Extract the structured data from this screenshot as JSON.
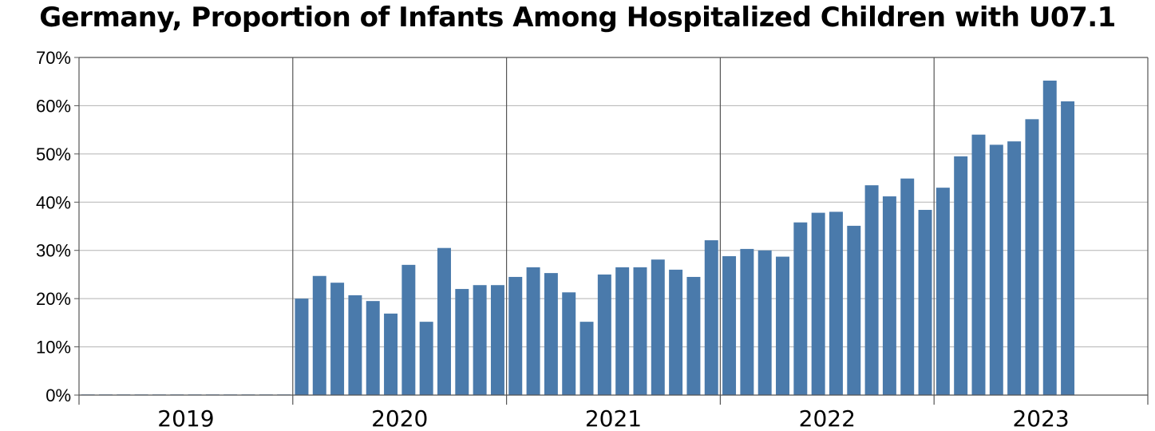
{
  "chart_data": {
    "type": "bar",
    "title": "Germany, Proportion of Infants Among Hospitalized Children with U07.1",
    "xlabel": "",
    "ylabel": "",
    "ylim": [
      0,
      70
    ],
    "yticks": [
      "0%",
      "10%",
      "20%",
      "30%",
      "40%",
      "50%",
      "60%",
      "70%"
    ],
    "year_labels": [
      "2019",
      "2020",
      "2021",
      "2022",
      "2023"
    ],
    "months_per_year": 12,
    "grid": "horizontal",
    "legend": "none",
    "bar_color": "#4a7aab",
    "values": [
      0,
      0,
      0,
      0,
      0,
      0,
      0,
      0,
      0,
      0,
      0,
      0,
      20.0,
      24.7,
      23.3,
      20.7,
      19.5,
      16.9,
      27.0,
      15.2,
      30.5,
      22.0,
      22.8,
      22.8,
      24.5,
      26.5,
      25.3,
      21.3,
      15.2,
      25.0,
      26.5,
      26.5,
      28.1,
      26.0,
      24.5,
      32.1,
      28.8,
      30.3,
      30.0,
      28.7,
      35.8,
      37.8,
      38.0,
      35.1,
      43.5,
      41.2,
      44.9,
      38.4,
      43.0,
      49.5,
      54.0,
      51.9,
      52.6,
      57.2,
      65.2,
      60.9
    ]
  }
}
